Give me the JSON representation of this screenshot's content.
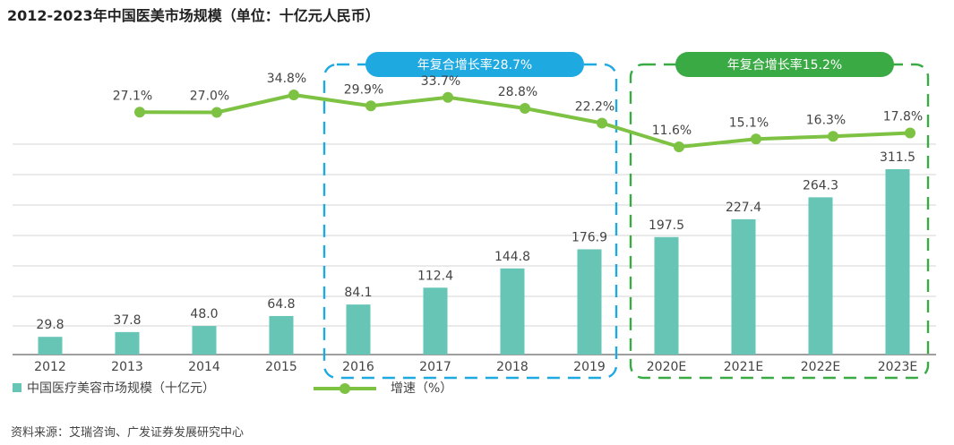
{
  "chart_data": {
    "type": "bar",
    "title": "2012-2023年中国医美市场规模（单位：十亿元人民币）",
    "categories": [
      "2012",
      "2013",
      "2014",
      "2015",
      "2016",
      "2017",
      "2018",
      "2019",
      "2020E",
      "2021E",
      "2022E",
      "2023E"
    ],
    "series": [
      {
        "name": "中国医疗美容市场规模（十亿元）",
        "type": "bar",
        "color": "#66c5b5",
        "values": [
          29.8,
          37.8,
          48.0,
          64.8,
          84.1,
          112.4,
          144.8,
          176.9,
          197.5,
          227.4,
          264.3,
          311.5
        ]
      },
      {
        "name": "增速（%）",
        "type": "line",
        "color": "#7dc242",
        "values": [
          null,
          27.1,
          27.0,
          34.8,
          29.9,
          33.7,
          28.8,
          22.2,
          11.6,
          15.1,
          16.3,
          17.8
        ]
      }
    ],
    "bar_labels": [
      "29.8",
      "37.8",
      "48.0",
      "64.8",
      "84.1",
      "112.4",
      "144.8",
      "176.9",
      "197.5",
      "227.4",
      "264.3",
      "311.5"
    ],
    "line_labels": [
      null,
      "27.1%",
      "27.0%",
      "34.8%",
      "29.9%",
      "33.7%",
      "28.8%",
      "22.2%",
      "11.6%",
      "15.1%",
      "16.3%",
      "17.8%"
    ],
    "ylim": [
      0,
      350
    ],
    "grid": true,
    "legend_placement": "bottom-left",
    "annotations": [
      {
        "label": "年复合增长率28.7%",
        "range": [
          "2016",
          "2019"
        ],
        "color": "#1ea9e1"
      },
      {
        "label": "年复合增长率15.2%",
        "range": [
          "2020E",
          "2023E"
        ],
        "color": "#3aaa45"
      }
    ]
  },
  "source": "资料来源：艾瑞咨询、广发证券发展研究中心"
}
